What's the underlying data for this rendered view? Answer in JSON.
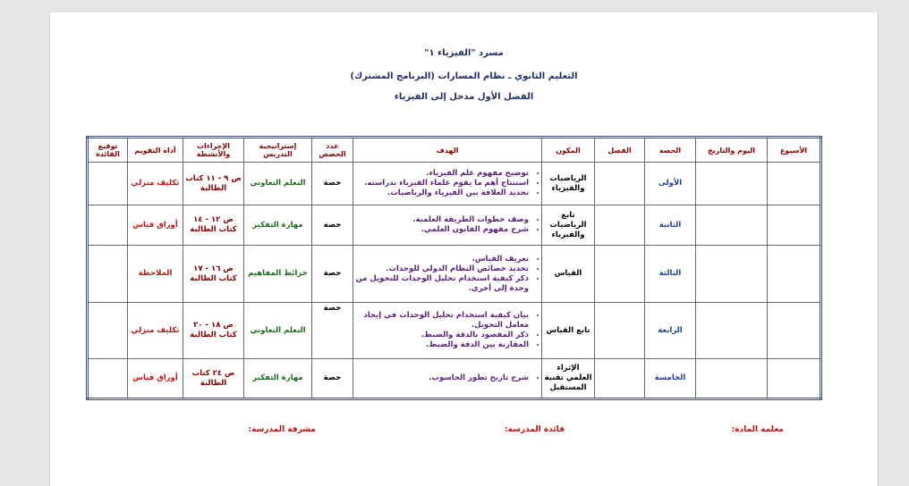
{
  "header": {
    "lines": [
      "مسرد \"الفيزياء ١\"",
      "التعليم الثانوي ـ نظام المسارات (البرنامج المشترك)",
      "الفصل الأول مدخل إلى الفيزياء"
    ]
  },
  "table": {
    "headers": [
      "الأسبوع",
      "اليوم والتاريخ",
      "الحصة",
      "الفصل",
      "المكون",
      "الهدف",
      "عدد الحصص",
      "إستراتيجية التدريس",
      "الإجراءات والأنشطة",
      "أداة التقويم",
      "توقيع القائدة"
    ],
    "rows": [
      {
        "session": "الأولى",
        "component": "الرياضيات والفيزياء",
        "objectives": [
          "توضيح مفهوم علم الفيزياء.",
          "استنتاج أهم ما يقوم علماء الفيزياء بدراسته.",
          "تحديد العلاقة بين الفيزياء والرياضيات."
        ],
        "count": "حصة",
        "strategy": "التعلم التعاوني",
        "activities": "ص ٩ - ١١ كتاب الطالبة",
        "evaluation": "تكليف منزلي"
      },
      {
        "session": "الثانية",
        "component": "تابع الرياضيات والفيزياء",
        "objectives": [
          "وصف خطوات الطريقة العلمية.",
          "شرح مفهوم القانون العلمي."
        ],
        "count": "حصة",
        "strategy": "مهارة التفكير",
        "activities": "ص ١٢ - ١٤ كتاب الطالبة",
        "evaluation": "أوراق قياس"
      },
      {
        "session": "الثالثة",
        "component": "القياس",
        "objectives": [
          "تعريف القياس.",
          "تحديد خصائص النظام الدولي للوحدات.",
          "ذكر كيفية استخدام تحليل الوحدات للتحويل من وحدة إلى أخرى."
        ],
        "count": "حصة",
        "strategy": "خرائط المفاهيم",
        "activities": "ص ١٦ - ١٧ كتاب الطالبة",
        "evaluation": "الملاحظة"
      },
      {
        "session": "الرابعة",
        "component": "تابع القياس",
        "objectives": [
          "بيان كيفية استخدام تحليل الوحدات في إيجاد معامل التحويل.",
          "ذكر المقصود بالدقة والضبط.",
          "المقارنة بين الدقة والضبط."
        ],
        "count": "حصة",
        "strategy": "التعلم التعاوني",
        "activities": "ص ١٨ - ٢٠ كتاب الطالبة",
        "evaluation": "تكليف منزلي"
      },
      {
        "session": "الخامسة",
        "component": "الإثراء العلمي تقنية المستقبل",
        "objectives": [
          "شرح تاريخ تطور الحاسوب."
        ],
        "count": "حصة",
        "strategy": "مهارة التفكير",
        "activities": "ص ٢٤ كتاب الطالبة",
        "evaluation": "أوراق قياس"
      }
    ]
  },
  "footer": {
    "teacher": "معلمة المادة:",
    "principal": "قائدة المدرسة:",
    "supervisor": "مشرفة المدرسة:"
  }
}
